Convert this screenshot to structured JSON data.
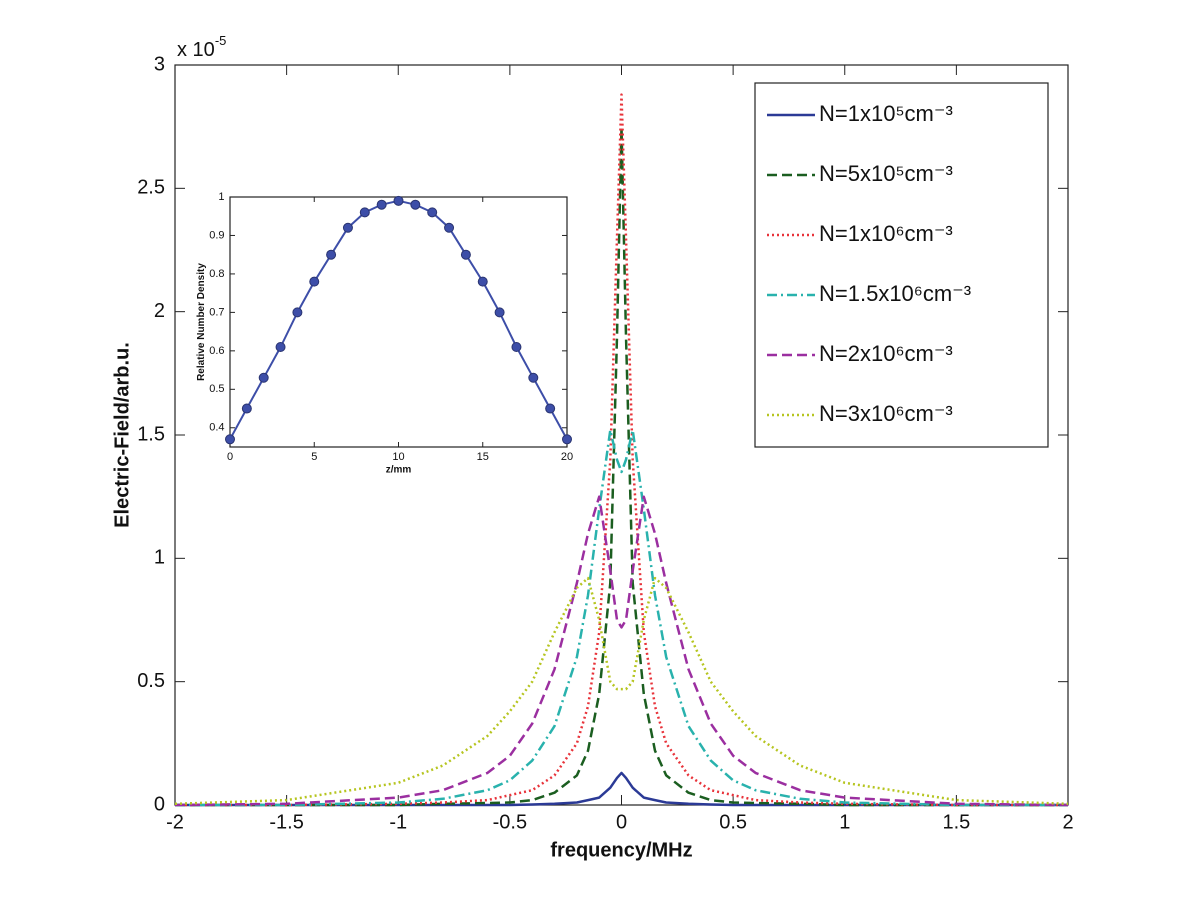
{
  "chart_data": [
    {
      "type": "line",
      "x_label": "frequency/MHz",
      "y_label": "Electric-Field/arb.u.",
      "y_multiplier": {
        "base": "x 10",
        "exponent": "-5"
      },
      "xlim": [
        -2,
        2
      ],
      "xticks": [
        -2,
        -1.5,
        -1,
        -0.5,
        0,
        0.5,
        1,
        1.5,
        2
      ],
      "ylim": [
        0,
        3
      ],
      "yticks": [
        0,
        0.5,
        1,
        1.5,
        2,
        2.5,
        3
      ],
      "legend": "upper right",
      "x": [
        -2,
        -1.5,
        -1,
        -0.8,
        -0.6,
        -0.5,
        -0.4,
        -0.3,
        -0.2,
        -0.15,
        -0.1,
        -0.05,
        -0.02,
        0,
        0.02,
        0.05,
        0.1,
        0.15,
        0.2,
        0.3,
        0.4,
        0.5,
        0.6,
        0.8,
        1,
        1.5,
        2
      ],
      "series": [
        {
          "name": "N=1x10⁵cm⁻³",
          "color": "#2b3a96",
          "dash": "solid",
          "values": [
            0,
            0,
            0,
            0,
            0,
            0,
            0.002,
            0.005,
            0.01,
            0.02,
            0.03,
            0.07,
            0.11,
            0.13,
            0.11,
            0.07,
            0.03,
            0.02,
            0.01,
            0.005,
            0.002,
            0,
            0,
            0,
            0,
            0,
            0
          ]
        },
        {
          "name": "N=5x10⁵cm⁻³",
          "color": "#1b5e20",
          "dash": "dashed",
          "values": [
            0,
            0,
            0,
            0.005,
            0.008,
            0.01,
            0.02,
            0.05,
            0.12,
            0.22,
            0.45,
            0.9,
            1.9,
            2.75,
            1.9,
            0.9,
            0.45,
            0.22,
            0.12,
            0.05,
            0.02,
            0.01,
            0.008,
            0.005,
            0,
            0,
            0
          ]
        },
        {
          "name": "N=1x10⁶cm⁻³",
          "color": "#e8333a",
          "dash": "dotted",
          "values": [
            0,
            0,
            0.005,
            0.01,
            0.02,
            0.04,
            0.06,
            0.12,
            0.25,
            0.4,
            0.7,
            1.4,
            2.3,
            2.88,
            2.3,
            1.4,
            0.7,
            0.4,
            0.25,
            0.12,
            0.06,
            0.04,
            0.02,
            0.01,
            0.005,
            0,
            0
          ]
        },
        {
          "name": "N=1.5x10⁶cm⁻³",
          "color": "#29b2ad",
          "dash": "dashdot",
          "values": [
            0,
            0,
            0.01,
            0.025,
            0.06,
            0.1,
            0.18,
            0.32,
            0.6,
            0.85,
            1.2,
            1.52,
            1.4,
            1.35,
            1.4,
            1.52,
            1.2,
            0.85,
            0.6,
            0.32,
            0.18,
            0.1,
            0.06,
            0.025,
            0.01,
            0,
            0
          ]
        },
        {
          "name": "N=2x10⁶cm⁻³",
          "color": "#9b2fa0",
          "dash": "dashed",
          "values": [
            0,
            0.005,
            0.03,
            0.06,
            0.13,
            0.2,
            0.33,
            0.55,
            0.9,
            1.1,
            1.25,
            0.95,
            0.75,
            0.72,
            0.75,
            0.95,
            1.25,
            1.1,
            0.9,
            0.55,
            0.33,
            0.2,
            0.13,
            0.06,
            0.03,
            0.005,
            0
          ]
        },
        {
          "name": "N=3x10⁶cm⁻³",
          "color": "#b6c520",
          "dash": "dotted",
          "values": [
            0.005,
            0.02,
            0.09,
            0.16,
            0.28,
            0.38,
            0.5,
            0.7,
            0.88,
            0.92,
            0.75,
            0.5,
            0.47,
            0.47,
            0.47,
            0.5,
            0.75,
            0.92,
            0.88,
            0.7,
            0.5,
            0.38,
            0.28,
            0.16,
            0.09,
            0.02,
            0.005
          ]
        }
      ]
    },
    {
      "type": "line",
      "x_label": "z/mm",
      "y_label": "Relative Number Density",
      "xlim": [
        0,
        20
      ],
      "xticks": [
        0,
        5,
        10,
        15,
        20
      ],
      "ylim": [
        0.35,
        1
      ],
      "yticks": [
        0.4,
        0.5,
        0.6,
        0.7,
        0.8,
        0.9,
        1
      ],
      "markers": true,
      "x": [
        0,
        1,
        2,
        3,
        4,
        5,
        6,
        7,
        8,
        9,
        10,
        11,
        12,
        13,
        14,
        15,
        16,
        17,
        18,
        19,
        20
      ],
      "series": [
        {
          "color": "#3d4ea8",
          "dash": "solid",
          "values": [
            0.37,
            0.45,
            0.53,
            0.61,
            0.7,
            0.78,
            0.85,
            0.92,
            0.96,
            0.98,
            0.99,
            0.98,
            0.96,
            0.92,
            0.85,
            0.78,
            0.7,
            0.61,
            0.53,
            0.45,
            0.37
          ]
        }
      ]
    }
  ]
}
